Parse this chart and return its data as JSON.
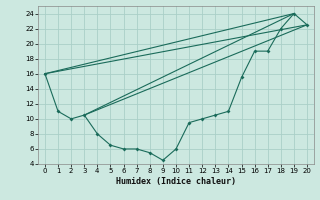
{
  "xlabel": "Humidex (Indice chaleur)",
  "background_color": "#cce8e0",
  "grid_color": "#aacfc8",
  "line_color": "#1a6b5a",
  "xlim": [
    -0.5,
    20.5
  ],
  "ylim": [
    4,
    25
  ],
  "xticks": [
    0,
    1,
    2,
    3,
    4,
    5,
    6,
    7,
    8,
    9,
    10,
    11,
    12,
    13,
    14,
    15,
    16,
    17,
    18,
    19,
    20
  ],
  "yticks": [
    4,
    6,
    8,
    10,
    12,
    14,
    16,
    18,
    20,
    22,
    24
  ],
  "series": [
    {
      "x": [
        0,
        1,
        2,
        3,
        4,
        5,
        6,
        7,
        8,
        9,
        10,
        11,
        12,
        13,
        14,
        15,
        16,
        17,
        18,
        19,
        20
      ],
      "y": [
        16,
        11,
        10,
        10.5,
        8,
        6.5,
        6,
        6,
        5.5,
        4.5,
        6,
        9.5,
        10,
        10.5,
        11,
        15.5,
        19,
        19,
        22,
        24,
        22.5
      ]
    },
    {
      "comment": "straight line 1: from x=0,y=16 to x=20,y=22.5",
      "x": [
        0,
        20
      ],
      "y": [
        16,
        22.5
      ]
    },
    {
      "x": [
        0,
        19
      ],
      "y": [
        16,
        24
      ]
    },
    {
      "comment": "straight line 3: from x=3,y=10.5 to x=20,y=22.5",
      "x": [
        3,
        20
      ],
      "y": [
        10.5,
        22.5
      ]
    },
    {
      "comment": "straight line 4: from x=3,y=10.5 to x=19,y=24",
      "x": [
        3,
        19
      ],
      "y": [
        10.5,
        24
      ]
    }
  ]
}
